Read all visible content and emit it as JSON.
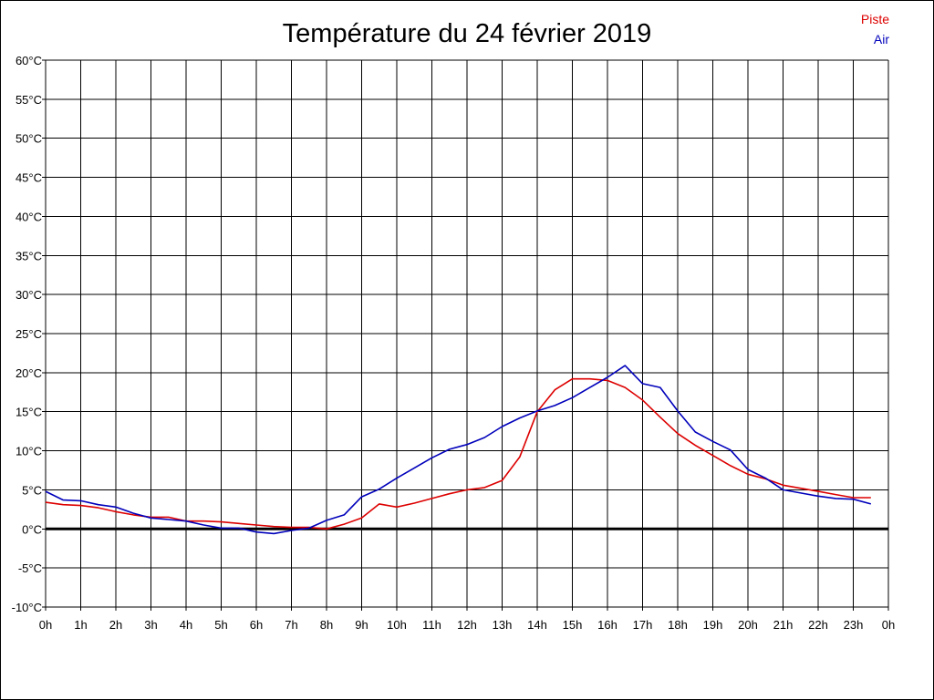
{
  "chart_data": {
    "type": "line",
    "title": "Température du 24 février 2019",
    "xlabel": "",
    "ylabel": "",
    "x_ticks": [
      "0h",
      "1h",
      "2h",
      "3h",
      "4h",
      "5h",
      "6h",
      "7h",
      "8h",
      "9h",
      "10h",
      "11h",
      "12h",
      "13h",
      "14h",
      "15h",
      "16h",
      "17h",
      "18h",
      "19h",
      "20h",
      "21h",
      "22h",
      "23h",
      "0h"
    ],
    "y_ticks": [
      "60°C",
      "55°C",
      "50°C",
      "45°C",
      "40°C",
      "35°C",
      "30°C",
      "25°C",
      "20°C",
      "15°C",
      "10°C",
      "5°C",
      "0°C",
      "-5°C",
      "-10°C"
    ],
    "xlim": [
      0,
      24
    ],
    "ylim": [
      -10,
      60
    ],
    "grid": true,
    "legend_position": "top-right",
    "series": [
      {
        "name": "Piste",
        "color": "#dd0000",
        "x": [
          0,
          0.5,
          1,
          1.5,
          2,
          2.5,
          3,
          3.5,
          4,
          4.5,
          5,
          5.5,
          6,
          6.5,
          7,
          7.5,
          8,
          8.5,
          9,
          9.5,
          10,
          10.5,
          11,
          11.5,
          12,
          12.5,
          13,
          13.5,
          14,
          14.5,
          15,
          15.5,
          16,
          16.5,
          17,
          17.5,
          18,
          18.5,
          19,
          19.5,
          20,
          20.5,
          21,
          21.5,
          22,
          22.5,
          23,
          23.5
        ],
        "values": [
          3.4,
          3.1,
          3.0,
          2.7,
          2.2,
          1.8,
          1.5,
          1.5,
          1.0,
          1.0,
          0.9,
          0.7,
          0.5,
          0.3,
          0.2,
          0.2,
          0.0,
          0.6,
          1.4,
          3.2,
          2.8,
          3.3,
          3.9,
          4.5,
          5.0,
          5.3,
          6.2,
          9.2,
          15.0,
          17.8,
          19.2,
          19.2,
          19.0,
          18.1,
          16.5,
          14.3,
          12.2,
          10.7,
          9.4,
          8.1,
          7.0,
          6.4,
          5.6,
          5.2,
          4.8,
          4.4,
          4.0,
          4.0
        ]
      },
      {
        "name": "Air",
        "color": "#0000bb",
        "x": [
          0,
          0.5,
          1,
          1.5,
          2,
          2.5,
          3,
          3.5,
          4,
          4.5,
          5,
          5.5,
          6,
          6.5,
          7,
          7.5,
          8,
          8.5,
          9,
          9.5,
          10,
          10.5,
          11,
          11.5,
          12,
          12.5,
          13,
          13.5,
          14,
          14.5,
          15,
          15.5,
          16,
          16.5,
          17,
          17.5,
          18,
          18.5,
          19,
          19.5,
          20,
          20.5,
          21,
          21.5,
          22,
          22.5,
          23,
          23.5
        ],
        "values": [
          4.8,
          3.7,
          3.6,
          3.1,
          2.8,
          2.0,
          1.4,
          1.2,
          1.0,
          0.5,
          0.1,
          0.1,
          -0.4,
          -0.6,
          -0.2,
          0.1,
          1.1,
          1.8,
          4.1,
          5.1,
          6.5,
          7.8,
          9.1,
          10.2,
          10.8,
          11.7,
          13.1,
          14.2,
          15.1,
          15.8,
          16.8,
          18.1,
          19.4,
          20.9,
          18.6,
          18.1,
          15.1,
          12.4,
          11.2,
          10.1,
          7.6,
          6.5,
          5.0,
          4.6,
          4.2,
          3.9,
          3.8,
          3.2
        ]
      }
    ]
  }
}
